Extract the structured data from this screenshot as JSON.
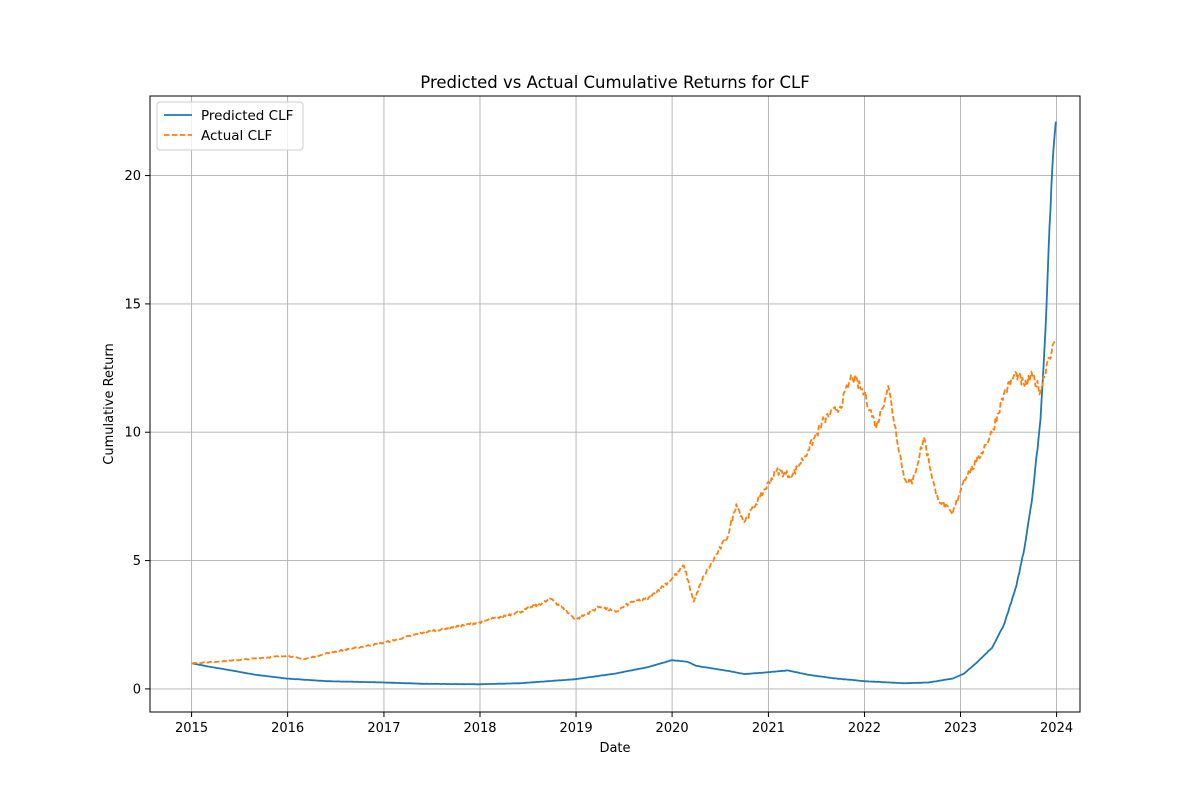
{
  "chart_data": {
    "type": "line",
    "title": "Predicted vs Actual Cumulative Returns for CLF",
    "xlabel": "Date",
    "ylabel": "Cumulative Return",
    "xlim": [
      "2014-07-27",
      "2024-03-30"
    ],
    "ylim": [
      -0.9,
      23.1
    ],
    "x_ticks": [
      "2015",
      "2016",
      "2017",
      "2018",
      "2019",
      "2020",
      "2021",
      "2022",
      "2023",
      "2024"
    ],
    "y_ticks": [
      0,
      5,
      10,
      15,
      20
    ],
    "grid": true,
    "legend_position": "top-left",
    "series": [
      {
        "name": "Predicted CLF",
        "color": "#1f77b4",
        "style": "solid",
        "points": [
          [
            "2015-01-02",
            1.0
          ],
          [
            "2015-03-01",
            0.88
          ],
          [
            "2015-06-01",
            0.72
          ],
          [
            "2015-09-01",
            0.55
          ],
          [
            "2016-01-01",
            0.4
          ],
          [
            "2016-06-01",
            0.3
          ],
          [
            "2017-01-01",
            0.25
          ],
          [
            "2017-06-01",
            0.2
          ],
          [
            "2018-01-01",
            0.18
          ],
          [
            "2018-06-01",
            0.22
          ],
          [
            "2019-01-01",
            0.38
          ],
          [
            "2019-06-01",
            0.6
          ],
          [
            "2019-10-01",
            0.85
          ],
          [
            "2020-01-01",
            1.12
          ],
          [
            "2020-03-01",
            1.05
          ],
          [
            "2020-04-01",
            0.9
          ],
          [
            "2020-08-01",
            0.7
          ],
          [
            "2020-10-01",
            0.58
          ],
          [
            "2021-01-01",
            0.65
          ],
          [
            "2021-03-15",
            0.72
          ],
          [
            "2021-06-01",
            0.55
          ],
          [
            "2021-09-01",
            0.42
          ],
          [
            "2022-01-01",
            0.3
          ],
          [
            "2022-06-01",
            0.22
          ],
          [
            "2022-09-01",
            0.25
          ],
          [
            "2022-12-01",
            0.4
          ],
          [
            "2023-01-15",
            0.6
          ],
          [
            "2023-03-01",
            1.0
          ],
          [
            "2023-05-01",
            1.6
          ],
          [
            "2023-06-15",
            2.5
          ],
          [
            "2023-08-01",
            4.0
          ],
          [
            "2023-09-01",
            5.5
          ],
          [
            "2023-10-01",
            7.5
          ],
          [
            "2023-11-01",
            10.5
          ],
          [
            "2023-11-20",
            14.0
          ],
          [
            "2023-12-05",
            18.0
          ],
          [
            "2023-12-20",
            21.0
          ],
          [
            "2023-12-29",
            22.1
          ]
        ]
      },
      {
        "name": "Actual CLF",
        "color": "#ff7f0e",
        "style": "dashed",
        "points": [
          [
            "2015-01-02",
            1.0
          ],
          [
            "2015-06-01",
            1.1
          ],
          [
            "2016-01-01",
            1.3
          ],
          [
            "2016-03-01",
            1.15
          ],
          [
            "2016-06-01",
            1.4
          ],
          [
            "2017-01-01",
            1.8
          ],
          [
            "2017-06-01",
            2.2
          ],
          [
            "2018-01-01",
            2.6
          ],
          [
            "2018-06-01",
            3.0
          ],
          [
            "2018-10-01",
            3.5
          ],
          [
            "2019-01-01",
            2.7
          ],
          [
            "2019-04-01",
            3.2
          ],
          [
            "2019-06-01",
            3.0
          ],
          [
            "2019-08-01",
            3.4
          ],
          [
            "2019-10-01",
            3.5
          ],
          [
            "2020-01-01",
            4.3
          ],
          [
            "2020-02-15",
            4.8
          ],
          [
            "2020-03-23",
            3.4
          ],
          [
            "2020-05-01",
            4.4
          ],
          [
            "2020-08-01",
            6.0
          ],
          [
            "2020-09-01",
            7.2
          ],
          [
            "2020-10-01",
            6.5
          ],
          [
            "2020-12-01",
            7.5
          ],
          [
            "2021-02-01",
            8.5
          ],
          [
            "2021-04-01",
            8.3
          ],
          [
            "2021-06-01",
            9.3
          ],
          [
            "2021-08-01",
            10.5
          ],
          [
            "2021-10-01",
            11.0
          ],
          [
            "2021-11-15",
            12.2
          ],
          [
            "2022-01-01",
            11.5
          ],
          [
            "2022-02-15",
            10.2
          ],
          [
            "2022-04-01",
            11.8
          ],
          [
            "2022-06-01",
            8.2
          ],
          [
            "2022-07-01",
            8.0
          ],
          [
            "2022-08-15",
            9.8
          ],
          [
            "2022-10-01",
            7.5
          ],
          [
            "2022-12-01",
            6.8
          ],
          [
            "2023-01-15",
            8.2
          ],
          [
            "2023-03-01",
            8.8
          ],
          [
            "2023-05-01",
            10.0
          ],
          [
            "2023-06-15",
            11.5
          ],
          [
            "2023-08-01",
            12.3
          ],
          [
            "2023-09-01",
            11.8
          ],
          [
            "2023-10-01",
            12.2
          ],
          [
            "2023-11-01",
            11.6
          ],
          [
            "2023-12-01",
            12.9
          ],
          [
            "2023-12-29",
            13.5
          ]
        ]
      }
    ]
  }
}
